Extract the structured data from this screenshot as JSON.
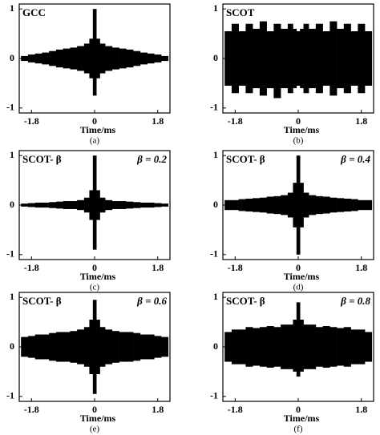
{
  "chart_data": [
    {
      "type": "band",
      "title": "GCC",
      "xlabel": "Time/ms",
      "caption": "(a)",
      "color": "#000000",
      "xlim": [
        -2.15,
        2.15
      ],
      "ylim": [
        -1.1,
        1.1
      ],
      "xticks": [
        -1.8,
        0,
        1.8
      ],
      "yticks": [
        -1,
        0,
        1
      ],
      "x": [
        -2,
        -1.8,
        -1.6,
        -1.4,
        -1.2,
        -1,
        -0.8,
        -0.6,
        -0.4,
        -0.2,
        -0.1,
        0,
        0.1,
        0.2,
        0.4,
        0.6,
        0.8,
        1,
        1.2,
        1.4,
        1.6,
        1.8,
        2
      ],
      "upper": [
        0.05,
        0.08,
        0.1,
        0.12,
        0.15,
        0.18,
        0.2,
        0.22,
        0.25,
        0.3,
        0.4,
        1.0,
        0.4,
        0.3,
        0.25,
        0.22,
        0.2,
        0.18,
        0.15,
        0.12,
        0.1,
        0.08,
        0.05
      ],
      "lower": [
        -0.05,
        -0.08,
        -0.1,
        -0.12,
        -0.15,
        -0.18,
        -0.2,
        -0.22,
        -0.25,
        -0.3,
        -0.4,
        -0.75,
        -0.4,
        -0.3,
        -0.25,
        -0.22,
        -0.2,
        -0.18,
        -0.15,
        -0.12,
        -0.1,
        -0.08,
        -0.05
      ]
    },
    {
      "type": "band",
      "title": "SCOT",
      "xlabel": "Time/ms",
      "caption": "(b)",
      "color": "#000000",
      "xlim": [
        -2.15,
        2.15
      ],
      "ylim": [
        -1.1,
        1.1
      ],
      "xticks": [
        -1.8,
        0,
        1.8
      ],
      "yticks": [
        -1,
        0,
        1
      ],
      "x": [
        -2,
        -1.8,
        -1.6,
        -1.4,
        -1.2,
        -1,
        -0.8,
        -0.6,
        -0.4,
        -0.2,
        -0.1,
        0,
        0.1,
        0.2,
        0.4,
        0.6,
        0.8,
        1,
        1.2,
        1.4,
        1.6,
        1.8,
        2
      ],
      "upper": [
        0.55,
        0.7,
        0.55,
        0.7,
        0.6,
        0.75,
        0.55,
        0.7,
        0.6,
        0.7,
        0.6,
        0.55,
        0.6,
        0.7,
        0.6,
        0.7,
        0.55,
        0.75,
        0.6,
        0.7,
        0.55,
        0.7,
        0.55
      ],
      "lower": [
        -0.55,
        -0.7,
        -0.55,
        -0.7,
        -0.6,
        -0.75,
        -0.6,
        -0.8,
        -0.6,
        -0.7,
        -0.6,
        -0.55,
        -0.6,
        -0.7,
        -0.6,
        -0.7,
        -0.55,
        -0.75,
        -0.6,
        -0.7,
        -0.55,
        -0.7,
        -0.55
      ]
    },
    {
      "type": "band",
      "title": "SCOT- β",
      "annotation": "β = 0.2",
      "xlabel": "Time/ms",
      "caption": "(c)",
      "color": "#000000",
      "xlim": [
        -2.15,
        2.15
      ],
      "ylim": [
        -1.1,
        1.1
      ],
      "xticks": [
        -1.8,
        0,
        1.8
      ],
      "yticks": [
        -1,
        0,
        1
      ],
      "x": [
        -2,
        -1.8,
        -1.6,
        -1.4,
        -1.2,
        -1,
        -0.8,
        -0.6,
        -0.4,
        -0.2,
        -0.1,
        0,
        0.1,
        0.2,
        0.4,
        0.6,
        0.8,
        1,
        1.2,
        1.4,
        1.6,
        1.8,
        2
      ],
      "upper": [
        0.03,
        0.04,
        0.05,
        0.05,
        0.06,
        0.07,
        0.08,
        0.08,
        0.1,
        0.15,
        0.3,
        1.0,
        0.3,
        0.15,
        0.1,
        0.08,
        0.08,
        0.07,
        0.06,
        0.05,
        0.05,
        0.04,
        0.03
      ],
      "lower": [
        -0.03,
        -0.04,
        -0.05,
        -0.05,
        -0.06,
        -0.07,
        -0.08,
        -0.08,
        -0.1,
        -0.15,
        -0.3,
        -0.9,
        -0.3,
        -0.15,
        -0.1,
        -0.08,
        -0.08,
        -0.07,
        -0.06,
        -0.05,
        -0.05,
        -0.04,
        -0.03
      ]
    },
    {
      "type": "band",
      "title": "SCOT- β",
      "annotation": "β = 0.4",
      "xlabel": "Time/ms",
      "caption": "(d)",
      "color": "#000000",
      "xlim": [
        -2.15,
        2.15
      ],
      "ylim": [
        -1.1,
        1.1
      ],
      "xticks": [
        -1.8,
        0,
        1.8
      ],
      "yticks": [
        -1,
        0,
        1
      ],
      "x": [
        -2,
        -1.8,
        -1.6,
        -1.4,
        -1.2,
        -1,
        -0.8,
        -0.6,
        -0.4,
        -0.2,
        -0.1,
        0,
        0.1,
        0.2,
        0.4,
        0.6,
        0.8,
        1,
        1.2,
        1.4,
        1.6,
        1.8,
        2
      ],
      "upper": [
        0.1,
        0.1,
        0.12,
        0.13,
        0.14,
        0.15,
        0.17,
        0.18,
        0.2,
        0.25,
        0.45,
        1.0,
        0.45,
        0.25,
        0.2,
        0.18,
        0.17,
        0.15,
        0.14,
        0.13,
        0.12,
        0.1,
        0.1
      ],
      "lower": [
        -0.1,
        -0.1,
        -0.12,
        -0.13,
        -0.14,
        -0.15,
        -0.17,
        -0.18,
        -0.2,
        -0.25,
        -0.45,
        -1.0,
        -0.45,
        -0.25,
        -0.2,
        -0.18,
        -0.17,
        -0.15,
        -0.14,
        -0.13,
        -0.12,
        -0.1,
        -0.1
      ]
    },
    {
      "type": "band",
      "title": "SCOT- β",
      "annotation": "β = 0.6",
      "xlabel": "Time/ms",
      "caption": "(e)",
      "color": "#000000",
      "xlim": [
        -2.15,
        2.15
      ],
      "ylim": [
        -1.1,
        1.1
      ],
      "xticks": [
        -1.8,
        0,
        1.8
      ],
      "yticks": [
        -1,
        0,
        1
      ],
      "x": [
        -2,
        -1.8,
        -1.6,
        -1.4,
        -1.2,
        -1,
        -0.8,
        -0.6,
        -0.4,
        -0.2,
        -0.1,
        0,
        0.1,
        0.2,
        0.4,
        0.6,
        0.8,
        1,
        1.2,
        1.4,
        1.6,
        1.8,
        2
      ],
      "upper": [
        0.2,
        0.22,
        0.25,
        0.25,
        0.28,
        0.3,
        0.3,
        0.32,
        0.35,
        0.4,
        0.55,
        0.95,
        0.55,
        0.4,
        0.35,
        0.32,
        0.3,
        0.3,
        0.28,
        0.25,
        0.25,
        0.22,
        0.2
      ],
      "lower": [
        -0.2,
        -0.22,
        -0.25,
        -0.25,
        -0.28,
        -0.3,
        -0.3,
        -0.32,
        -0.35,
        -0.4,
        -0.55,
        -0.95,
        -0.55,
        -0.4,
        -0.35,
        -0.32,
        -0.3,
        -0.3,
        -0.28,
        -0.25,
        -0.25,
        -0.22,
        -0.2
      ]
    },
    {
      "type": "band",
      "title": "SCOT- β",
      "annotation": "β = 0.8",
      "xlabel": "Time/ms",
      "caption": "(f)",
      "color": "#000000",
      "xlim": [
        -2.15,
        2.15
      ],
      "ylim": [
        -1.1,
        1.1
      ],
      "xticks": [
        -1.8,
        0,
        1.8
      ],
      "yticks": [
        -1,
        0,
        1
      ],
      "x": [
        -2,
        -1.8,
        -1.6,
        -1.4,
        -1.2,
        -1,
        -0.8,
        -0.6,
        -0.4,
        -0.2,
        -0.1,
        0,
        0.1,
        0.2,
        0.4,
        0.6,
        0.8,
        1,
        1.2,
        1.4,
        1.6,
        1.8,
        2
      ],
      "upper": [
        0.3,
        0.35,
        0.35,
        0.4,
        0.38,
        0.4,
        0.42,
        0.4,
        0.45,
        0.45,
        0.55,
        0.9,
        0.55,
        0.45,
        0.45,
        0.4,
        0.42,
        0.4,
        0.38,
        0.4,
        0.35,
        0.35,
        0.3
      ],
      "lower": [
        -0.3,
        -0.35,
        -0.35,
        -0.4,
        -0.38,
        -0.4,
        -0.42,
        -0.4,
        -0.45,
        -0.45,
        -0.5,
        -0.6,
        -0.5,
        -0.45,
        -0.45,
        -0.4,
        -0.42,
        -0.4,
        -0.38,
        -0.4,
        -0.35,
        -0.35,
        -0.3
      ]
    }
  ]
}
